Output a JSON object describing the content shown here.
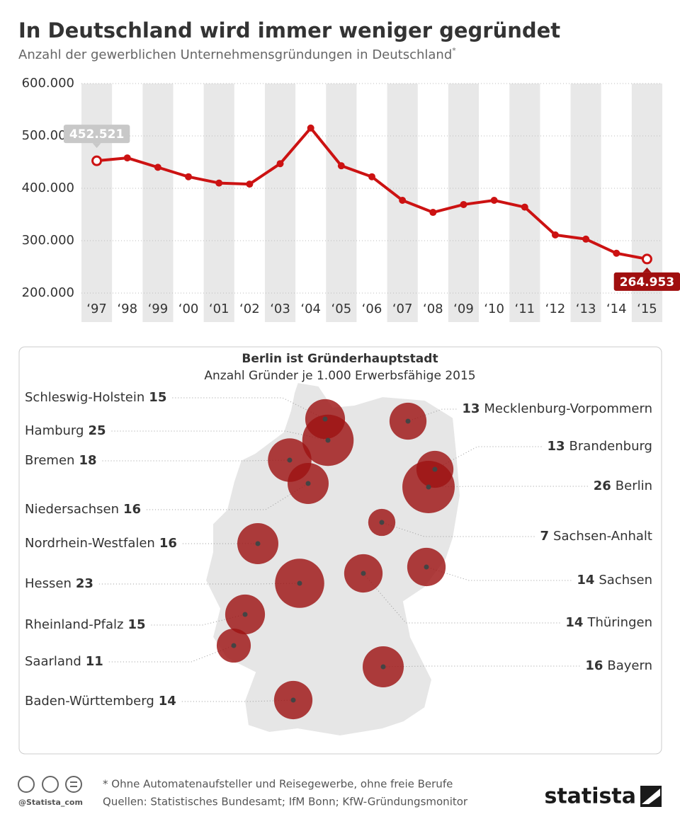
{
  "title": "In Deutschland wird immer weniger gegründet",
  "subtitle": "Anzahl der gewerblichen Unternehmensgründungen in Deutschland",
  "subtitle_mark": "*",
  "chart_data": [
    {
      "type": "line",
      "categories": [
        "‘97",
        "‘98",
        "‘99",
        "‘00",
        "‘01",
        "‘02",
        "‘03",
        "‘04",
        "‘05",
        "‘06",
        "‘07",
        "‘08",
        "‘09",
        "‘10",
        "‘11",
        "‘12",
        "‘13",
        "‘14",
        "‘15"
      ],
      "values": [
        452521,
        458000,
        440000,
        422000,
        410000,
        408000,
        447000,
        515000,
        443000,
        422000,
        377000,
        354000,
        369000,
        377000,
        364000,
        311000,
        303000,
        276000,
        264953
      ],
      "value_labels": [
        "452.521",
        null,
        null,
        null,
        null,
        null,
        null,
        null,
        null,
        null,
        null,
        null,
        null,
        null,
        null,
        null,
        null,
        null,
        "264.953"
      ],
      "color": "#cc1212",
      "ylim": [
        200000,
        600000
      ],
      "yticks": [
        {
          "value": 200000,
          "label": "200.000"
        },
        {
          "value": 300000,
          "label": "300.000"
        },
        {
          "value": 400000,
          "label": "400.000"
        },
        {
          "value": 500000,
          "label": "500.000"
        },
        {
          "value": 600000,
          "label": "600.000"
        }
      ],
      "grid": true
    },
    {
      "type": "bubble",
      "title": "Berlin ist Gründerhauptstadt",
      "subtitle": "Anzahl Gründer je 1.000 Erwerbsfähige 2015",
      "categories": [
        "Schleswig-Holstein",
        "Hamburg",
        "Bremen",
        "Niedersachsen",
        "Nordrhein-Westfalen",
        "Hessen",
        "Rheinland-Pfalz",
        "Saarland",
        "Baden-Württemberg",
        "Mecklenburg-Vorpommern",
        "Brandenburg",
        "Berlin",
        "Sachsen-Anhalt",
        "Sachsen",
        "Thüringen",
        "Bayern"
      ],
      "values": [
        15,
        25,
        18,
        16,
        16,
        23,
        15,
        11,
        14,
        13,
        13,
        26,
        7,
        14,
        14,
        16
      ],
      "color": "#9e1414"
    }
  ],
  "footer": {
    "note": "* Ohne Automatenaufsteller und Reisegewerbe, ohne freie Berufe",
    "sources": "Quellen: Statistisches Bundesamt; IfM Bonn; KfW-Gründungsmonitor",
    "handle": "@Statista_com",
    "brand": "statista"
  }
}
